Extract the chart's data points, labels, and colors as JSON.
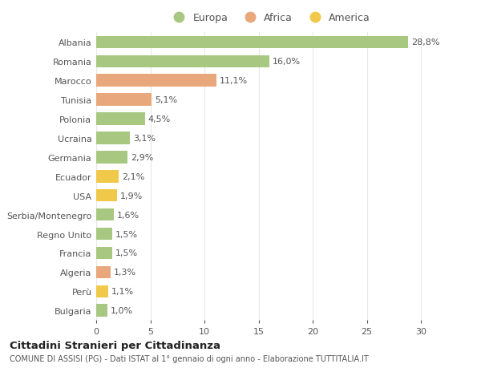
{
  "countries": [
    "Albania",
    "Romania",
    "Marocco",
    "Tunisia",
    "Polonia",
    "Ucraina",
    "Germania",
    "Ecuador",
    "USA",
    "Serbia/Montenegro",
    "Regno Unito",
    "Francia",
    "Algeria",
    "Perù",
    "Bulgaria"
  ],
  "values": [
    28.8,
    16.0,
    11.1,
    5.1,
    4.5,
    3.1,
    2.9,
    2.1,
    1.9,
    1.6,
    1.5,
    1.5,
    1.3,
    1.1,
    1.0
  ],
  "labels": [
    "28,8%",
    "16,0%",
    "11,1%",
    "5,1%",
    "4,5%",
    "3,1%",
    "2,9%",
    "2,1%",
    "1,9%",
    "1,6%",
    "1,5%",
    "1,5%",
    "1,3%",
    "1,1%",
    "1,0%"
  ],
  "continents": [
    "Europa",
    "Europa",
    "Africa",
    "Africa",
    "Europa",
    "Europa",
    "Europa",
    "America",
    "America",
    "Europa",
    "Europa",
    "Europa",
    "Africa",
    "America",
    "Europa"
  ],
  "colors": {
    "Europa": "#a8c882",
    "Africa": "#e8a87c",
    "America": "#f0c84a"
  },
  "legend_order": [
    "Europa",
    "Africa",
    "America"
  ],
  "title1": "Cittadini Stranieri per Cittadinanza",
  "title2": "COMUNE DI ASSISI (PG) - Dati ISTAT al 1° gennaio di ogni anno - Elaborazione TUTTITALIA.IT",
  "xlim": [
    0,
    32
  ],
  "xticks": [
    0,
    5,
    10,
    15,
    20,
    25,
    30
  ],
  "bg_color": "#ffffff",
  "grid_color": "#e8e8e8",
  "bar_height": 0.65,
  "label_fontsize": 8,
  "ytick_fontsize": 8,
  "xtick_fontsize": 8
}
